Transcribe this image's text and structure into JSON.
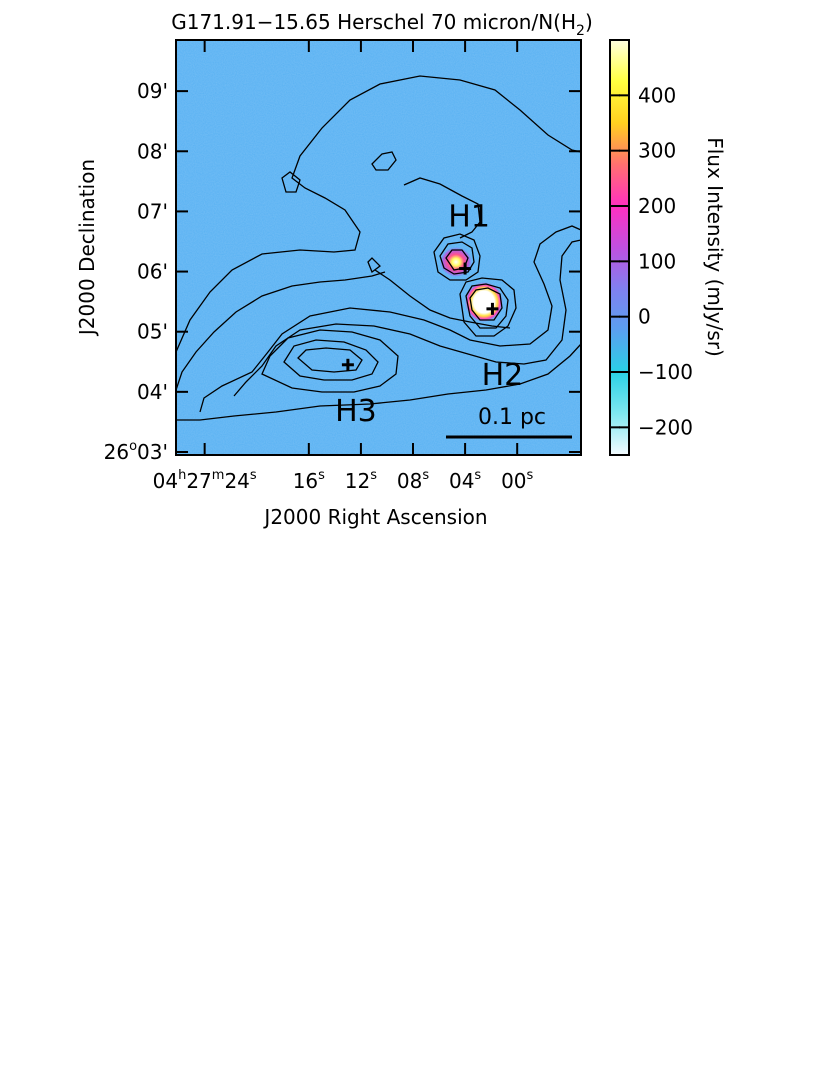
{
  "chart_data": {
    "type": "heatmap",
    "title_main": "G171.91−15.65 Herschel 70 micron/N(H",
    "title_sub": "2",
    "title_end": ")",
    "xlabel": "J2000 Right Ascension",
    "ylabel": "J2000 Declination",
    "colorbar_label": "Flux Intensity (mJy/sr)",
    "colorbar_ticks": [
      "400",
      "300",
      "200",
      "100",
      "0",
      "−100",
      "−200"
    ],
    "colorbar_range": [
      -250,
      500
    ],
    "colorbar_tick_values": [
      400,
      300,
      200,
      100,
      0,
      -100,
      -200
    ],
    "colorbar_colors": [
      "#f4fbff",
      "#7fe8f0",
      "#2ad0e6",
      "#5aa0f0",
      "#8080f0",
      "#c050e0",
      "#ff30c0",
      "#ff7070",
      "#ffd020",
      "#ffff40",
      "#ffffe0"
    ],
    "background_color": "#57b1f2",
    "x_ticks": [
      {
        "value": 24,
        "main": "04",
        "sup1": "h",
        "mid": "27",
        "sup2": "m",
        "end": "24",
        "sup3": "s"
      },
      {
        "value": 16,
        "main": "16",
        "sup1": "s"
      },
      {
        "value": 12,
        "main": "12",
        "sup1": "s"
      },
      {
        "value": 8,
        "main": "08",
        "sup1": "s"
      },
      {
        "value": 4,
        "main": "04",
        "sup1": "s"
      },
      {
        "value": 0,
        "main": "00",
        "sup1": "s"
      }
    ],
    "y_ticks": [
      {
        "value": 9,
        "label": "09'"
      },
      {
        "value": 8,
        "label": "08'"
      },
      {
        "value": 7,
        "label": "07'"
      },
      {
        "value": 6,
        "label": "06'"
      },
      {
        "value": 5,
        "label": "05'"
      },
      {
        "value": 4,
        "label": "04'"
      },
      {
        "value": 3,
        "main": "26",
        "sup": "o",
        "end": "03'"
      }
    ],
    "xlim": [
      26.2,
      -4.9
    ],
    "ylim": [
      2.95,
      9.85
    ],
    "sources": [
      {
        "name": "H1",
        "ra": 4.0,
        "dec": 6.05
      },
      {
        "name": "H2",
        "ra": 1.9,
        "dec": 5.38
      },
      {
        "name": "H3",
        "ra": 13.0,
        "dec": 4.45
      }
    ],
    "scale_bar_label": "0.1 pc"
  }
}
